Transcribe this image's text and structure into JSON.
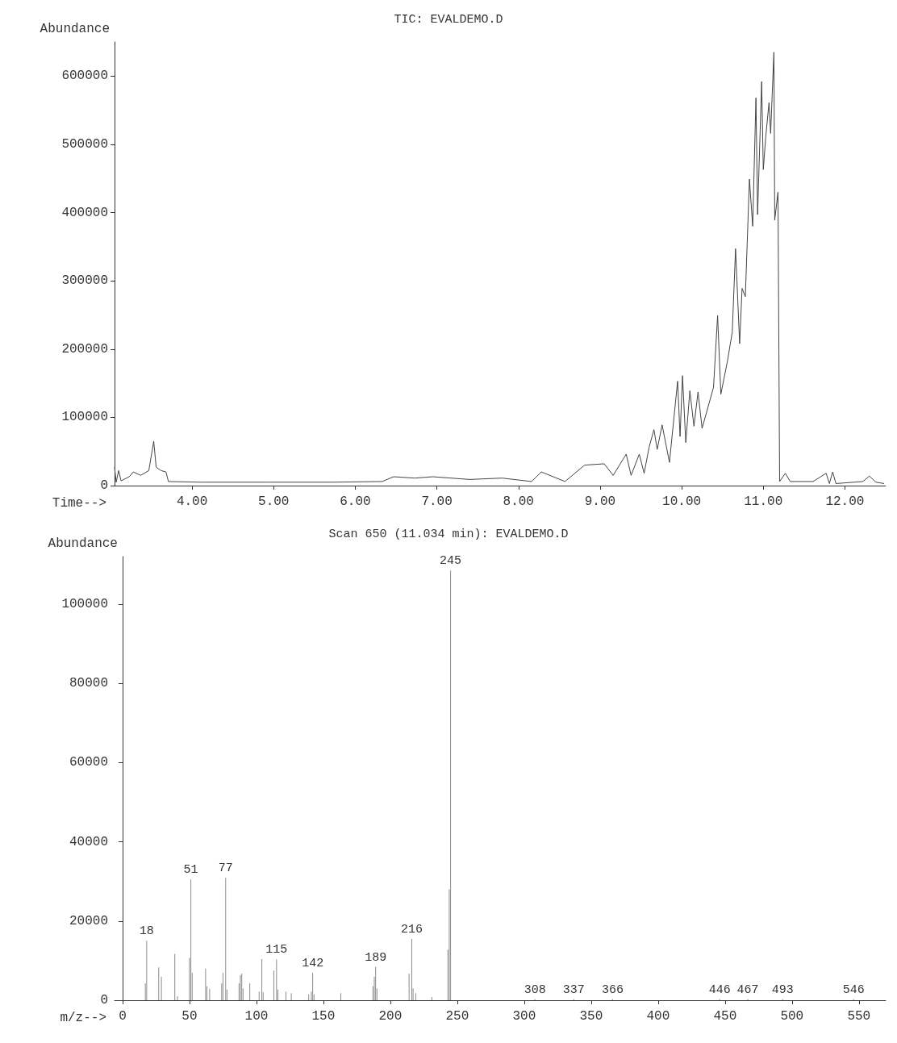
{
  "chart_data": [
    {
      "type": "line",
      "title": "TIC: EVALDEMO.D",
      "xlabel": "Time-->",
      "ylabel": "Abundance",
      "color": "#444444",
      "marker": "none",
      "line_style": "solid",
      "x": [
        3.05,
        3.07,
        3.1,
        3.13,
        3.23,
        3.28,
        3.37,
        3.47,
        3.53,
        3.56,
        3.62,
        3.68,
        3.71,
        4.1,
        4.91,
        5.72,
        6.33,
        6.47,
        6.73,
        6.95,
        7.4,
        7.8,
        8.16,
        8.28,
        8.57,
        8.81,
        9.05,
        9.16,
        9.32,
        9.38,
        9.48,
        9.54,
        9.6,
        9.66,
        9.7,
        9.76,
        9.85,
        9.95,
        9.98,
        10.01,
        10.05,
        10.1,
        10.15,
        10.2,
        10.25,
        10.39,
        10.44,
        10.48,
        10.56,
        10.62,
        10.66,
        10.71,
        10.74,
        10.78,
        10.83,
        10.87,
        10.91,
        10.93,
        10.98,
        11.0,
        11.03,
        11.07,
        11.09,
        11.13,
        11.14,
        11.18,
        11.2,
        11.27,
        11.33,
        11.61,
        11.77,
        11.81,
        11.85,
        11.89,
        12.22,
        12.3,
        12.38,
        12.48
      ],
      "values": [
        27000,
        5000,
        22000,
        7000,
        13000,
        20000,
        15000,
        22000,
        65000,
        27000,
        22000,
        20000,
        6000,
        5000,
        5000,
        5000,
        6000,
        13000,
        11000,
        13000,
        9000,
        11000,
        6000,
        20000,
        6000,
        30000,
        32000,
        15000,
        46000,
        15000,
        46000,
        18000,
        56000,
        82000,
        53000,
        89000,
        34000,
        153000,
        72000,
        161000,
        63000,
        139000,
        87000,
        137000,
        84000,
        144000,
        249000,
        134000,
        182000,
        225000,
        347000,
        208000,
        289000,
        277000,
        449000,
        380000,
        568000,
        397000,
        592000,
        463000,
        511000,
        561000,
        516000,
        635000,
        389000,
        430000,
        6000,
        18000,
        6000,
        6000,
        18000,
        3000,
        20000,
        3000,
        6000,
        14000,
        5000,
        3000
      ],
      "xlim": [
        3.05,
        12.5
      ],
      "ylim": [
        0,
        650000
      ],
      "xticks": [
        {
          "value": 4,
          "label": "4.00"
        },
        {
          "value": 5,
          "label": "5.00"
        },
        {
          "value": 6,
          "label": "6.00"
        },
        {
          "value": 7,
          "label": "7.00"
        },
        {
          "value": 8,
          "label": "8.00"
        },
        {
          "value": 9,
          "label": "9.00"
        },
        {
          "value": 10,
          "label": "10.00"
        },
        {
          "value": 11,
          "label": "11.00"
        },
        {
          "value": 12,
          "label": "12.00"
        }
      ],
      "yticks": [
        0,
        100000,
        200000,
        300000,
        400000,
        500000,
        600000
      ]
    },
    {
      "type": "bar",
      "title": "Scan 650 (11.034 min): EVALDEMO.D",
      "xlabel": "m/z-->",
      "ylabel": "Abundance",
      "color": "#8c8c8c",
      "x": [
        17,
        18,
        27,
        29,
        39,
        41,
        50,
        51,
        52,
        62,
        63,
        65,
        74,
        75,
        77,
        78,
        87,
        88,
        89,
        90,
        95,
        102,
        104,
        105,
        113,
        115,
        116,
        122,
        126,
        139,
        141,
        142,
        143,
        163,
        187,
        188,
        189,
        190,
        214,
        216,
        217,
        219,
        231,
        243,
        244,
        245,
        308,
        337,
        366,
        446,
        467,
        493,
        546
      ],
      "values": [
        4300,
        15000,
        8300,
        5900,
        11700,
        1000,
        10700,
        30500,
        7000,
        8000,
        3500,
        2900,
        4300,
        7000,
        30900,
        2700,
        4300,
        6300,
        6700,
        3000,
        4300,
        2200,
        10400,
        2000,
        7500,
        10300,
        2700,
        2200,
        1800,
        1500,
        2200,
        7000,
        1500,
        1800,
        3500,
        5900,
        8400,
        3000,
        6700,
        15500,
        3000,
        1800,
        800,
        12800,
        28000,
        108500,
        300,
        300,
        300,
        300,
        300,
        300,
        300
      ],
      "annotations": [
        {
          "text": "18",
          "x": 18,
          "y": 15000
        },
        {
          "text": "51",
          "x": 51,
          "y": 30500
        },
        {
          "text": "77",
          "x": 77,
          "y": 30900
        },
        {
          "text": "115",
          "x": 115,
          "y": 10300
        },
        {
          "text": "142",
          "x": 142,
          "y": 7000
        },
        {
          "text": "189",
          "x": 189,
          "y": 8400
        },
        {
          "text": "216",
          "x": 216,
          "y": 15500
        },
        {
          "text": "245",
          "x": 245,
          "y": 108500
        },
        {
          "text": "308",
          "x": 308,
          "y": 300
        },
        {
          "text": "337",
          "x": 337,
          "y": 300
        },
        {
          "text": "366",
          "x": 366,
          "y": 300
        },
        {
          "text": "446",
          "x": 446,
          "y": 300
        },
        {
          "text": "467",
          "x": 467,
          "y": 300
        },
        {
          "text": "493",
          "x": 493,
          "y": 300
        },
        {
          "text": "546",
          "x": 546,
          "y": 300
        }
      ],
      "xlim": [
        -6,
        570
      ],
      "ylim": [
        0,
        112000
      ],
      "xticks": [
        0,
        50,
        100,
        150,
        200,
        250,
        300,
        350,
        400,
        450,
        500,
        550
      ],
      "yticks": [
        0,
        20000,
        40000,
        60000,
        80000,
        100000
      ]
    }
  ]
}
